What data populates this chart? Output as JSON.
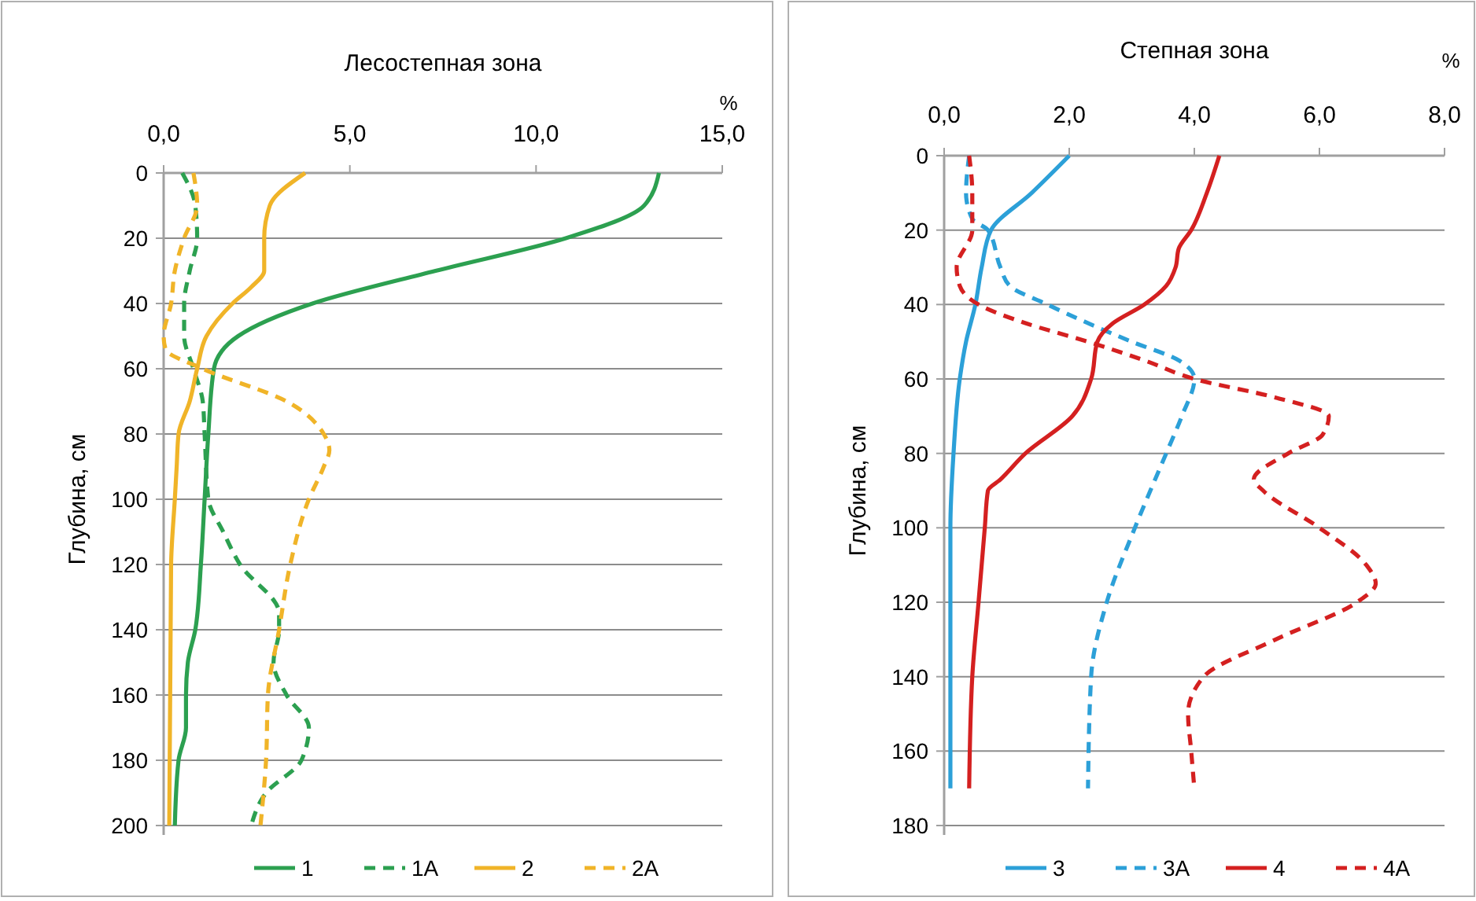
{
  "chart_data": [
    {
      "type": "line",
      "title": "Лесостепная зона",
      "xlabel": "%",
      "ylabel": "Глубина, см",
      "xlim": [
        0,
        15
      ],
      "xticks": [
        {
          "value": 0,
          "label": "0,0"
        },
        {
          "value": 5,
          "label": "5,0"
        },
        {
          "value": 10,
          "label": "10,0"
        },
        {
          "value": 15,
          "label": "15,0"
        }
      ],
      "ylim": [
        200,
        0
      ],
      "yticks": [
        0,
        20,
        40,
        60,
        80,
        100,
        120,
        140,
        160,
        180,
        200
      ],
      "grid": "y",
      "legend": "bottom",
      "marker": "none",
      "series": [
        {
          "name": "1",
          "color": "#2ca050",
          "line_style": "solid",
          "x": [
            13.3,
            12.9,
            10.8,
            7.3,
            4.0,
            2.0,
            1.35,
            1.2,
            1.1,
            1.0,
            0.85,
            0.65,
            0.6,
            0.6,
            0.4,
            0.3
          ],
          "values": [
            0,
            10,
            20,
            30,
            40,
            50,
            60,
            80,
            100,
            120,
            140,
            150,
            160,
            170,
            180,
            200
          ]
        },
        {
          "name": "1A",
          "color": "#2ca050",
          "line_style": "dashed",
          "x": [
            0.5,
            0.85,
            0.9,
            0.7,
            0.55,
            0.55,
            0.8,
            1.05,
            1.1,
            1.2,
            1.6,
            2.05,
            3.1,
            3.1,
            2.95,
            3.3,
            3.9,
            3.7,
            2.75,
            2.35
          ],
          "values": [
            0,
            10,
            20,
            30,
            40,
            50,
            60,
            70,
            80,
            100,
            110,
            120,
            135,
            140,
            150,
            160,
            170,
            180,
            190,
            200
          ]
        },
        {
          "name": "2",
          "color": "#f0b428",
          "line_style": "solid",
          "x": [
            3.8,
            2.85,
            2.7,
            2.7,
            2.35,
            1.85,
            1.15,
            0.9,
            0.7,
            0.4,
            0.35,
            0.3,
            0.2,
            0.15
          ],
          "values": [
            0,
            10,
            20,
            30,
            35,
            40,
            50,
            60,
            70,
            80,
            90,
            100,
            120,
            200
          ]
        },
        {
          "name": "2A",
          "color": "#f0b428",
          "line_style": "dashed",
          "x": [
            0.8,
            0.9,
            0.55,
            0.3,
            0.2,
            0.0,
            0.05,
            1.05,
            3.3,
            4.3,
            4.45,
            4.3,
            3.9,
            3.4,
            3.1,
            2.8,
            2.75,
            2.6
          ],
          "values": [
            0,
            10,
            20,
            30,
            40,
            50,
            54,
            60,
            70,
            80,
            85,
            90,
            100,
            120,
            140,
            160,
            180,
            200
          ]
        }
      ]
    },
    {
      "type": "line",
      "title": "Степная зона",
      "xlabel": "%",
      "ylabel": "Глубина, см",
      "xlim": [
        0,
        8
      ],
      "xticks": [
        {
          "value": 0,
          "label": "0,0"
        },
        {
          "value": 2,
          "label": "2,0"
        },
        {
          "value": 4,
          "label": "4,0"
        },
        {
          "value": 6,
          "label": "6,0"
        },
        {
          "value": 8,
          "label": "8,0"
        }
      ],
      "ylim": [
        180,
        0
      ],
      "yticks": [
        0,
        20,
        40,
        60,
        80,
        100,
        120,
        140,
        160,
        180
      ],
      "grid": "y",
      "legend": "bottom",
      "marker": "none",
      "series": [
        {
          "name": "3",
          "color": "#2ca0d8",
          "line_style": "solid",
          "x": [
            2.0,
            1.4,
            0.75,
            0.6,
            0.5,
            0.35,
            0.25,
            0.15,
            0.1,
            0.1,
            0.1
          ],
          "values": [
            0,
            10,
            20,
            30,
            40,
            50,
            60,
            80,
            100,
            120,
            170
          ]
        },
        {
          "name": "3A",
          "color": "#2ca0d8",
          "line_style": "dashed",
          "x": [
            0.4,
            0.35,
            0.45,
            0.7,
            0.9,
            1.05,
            1.65,
            3.0,
            3.75,
            4.0,
            3.8,
            3.55,
            3.05,
            2.6,
            2.35,
            2.3
          ],
          "values": [
            0,
            10,
            17,
            20,
            30,
            35,
            40,
            50,
            55,
            60,
            70,
            80,
            100,
            120,
            140,
            170
          ]
        },
        {
          "name": "4",
          "color": "#d42020",
          "line_style": "solid",
          "x": [
            4.4,
            4.2,
            3.95,
            3.75,
            3.7,
            3.55,
            3.2,
            2.7,
            2.45,
            2.35,
            2.05,
            1.3,
            0.9,
            0.7,
            0.65,
            0.55,
            0.45,
            0.4
          ],
          "values": [
            0,
            10,
            20,
            25,
            30,
            35,
            40,
            45,
            50,
            60,
            70,
            80,
            87,
            90,
            100,
            120,
            140,
            170
          ]
        },
        {
          "name": "4A",
          "color": "#d42020",
          "line_style": "dashed",
          "x": [
            0.4,
            0.45,
            0.45,
            0.2,
            0.25,
            0.55,
            1.3,
            2.3,
            3.2,
            4.0,
            5.3,
            6.15,
            6.05,
            5.5,
            4.95,
            5.1,
            6.0,
            6.75,
            6.9,
            6.6,
            5.3,
            4.15,
            3.9,
            3.95,
            4.0
          ],
          "values": [
            0,
            10,
            20,
            30,
            35,
            40,
            45,
            50,
            55,
            60,
            65,
            70,
            75,
            80,
            87,
            90,
            100,
            110,
            115,
            120,
            130,
            140,
            150,
            160,
            170
          ]
        }
      ]
    }
  ]
}
